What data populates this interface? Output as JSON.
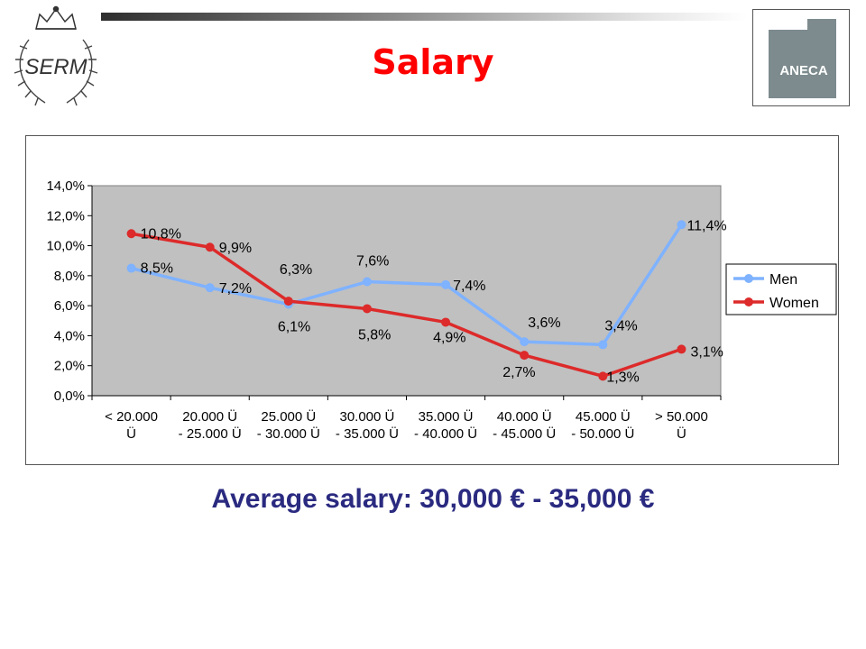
{
  "header": {
    "title": "Salary",
    "left_logo_text": "SERM",
    "right_logo_text": "ANECA"
  },
  "subtitle": "Average salary: 30,000 € - 35,000 €",
  "colors": {
    "men": "#7fb2ff",
    "women": "#dd2a2a",
    "plot_bg": "#c0c0c0",
    "title": "#ff0000",
    "subtitle": "#2a2a80"
  },
  "chart_data": {
    "type": "line",
    "categories": [
      [
        "< 20.000",
        "Ü"
      ],
      [
        "20.000 Ü",
        "- 25.000 Ü"
      ],
      [
        "25.000 Ü",
        "- 30.000 Ü"
      ],
      [
        "30.000 Ü",
        "- 35.000 Ü"
      ],
      [
        "35.000 Ü",
        "- 40.000 Ü"
      ],
      [
        "40.000 Ü",
        "- 45.000 Ü"
      ],
      [
        "45.000 Ü",
        "- 50.000 Ü"
      ],
      [
        "> 50.000",
        "Ü"
      ]
    ],
    "series": [
      {
        "name": "Men",
        "values": [
          8.5,
          7.2,
          6.1,
          7.6,
          7.4,
          3.6,
          3.4,
          11.4
        ],
        "labels": [
          "8,5%",
          "7,2%",
          "6,1%",
          "7,6%",
          "7,4%",
          "3,6%",
          "3,4%",
          "11,4%"
        ]
      },
      {
        "name": "Women",
        "values": [
          10.8,
          9.9,
          6.3,
          5.8,
          4.9,
          2.7,
          1.3,
          3.1
        ],
        "labels": [
          "10,8%",
          "9,9%",
          "6,3%",
          "5,8%",
          "4,9%",
          "2,7%",
          "1,3%",
          "3,1%"
        ]
      }
    ],
    "ylim": [
      0,
      14
    ],
    "yticks": [
      "0,0%",
      "2,0%",
      "4,0%",
      "6,0%",
      "8,0%",
      "10,0%",
      "12,0%",
      "14,0%"
    ],
    "grid": false,
    "legend": "right"
  }
}
